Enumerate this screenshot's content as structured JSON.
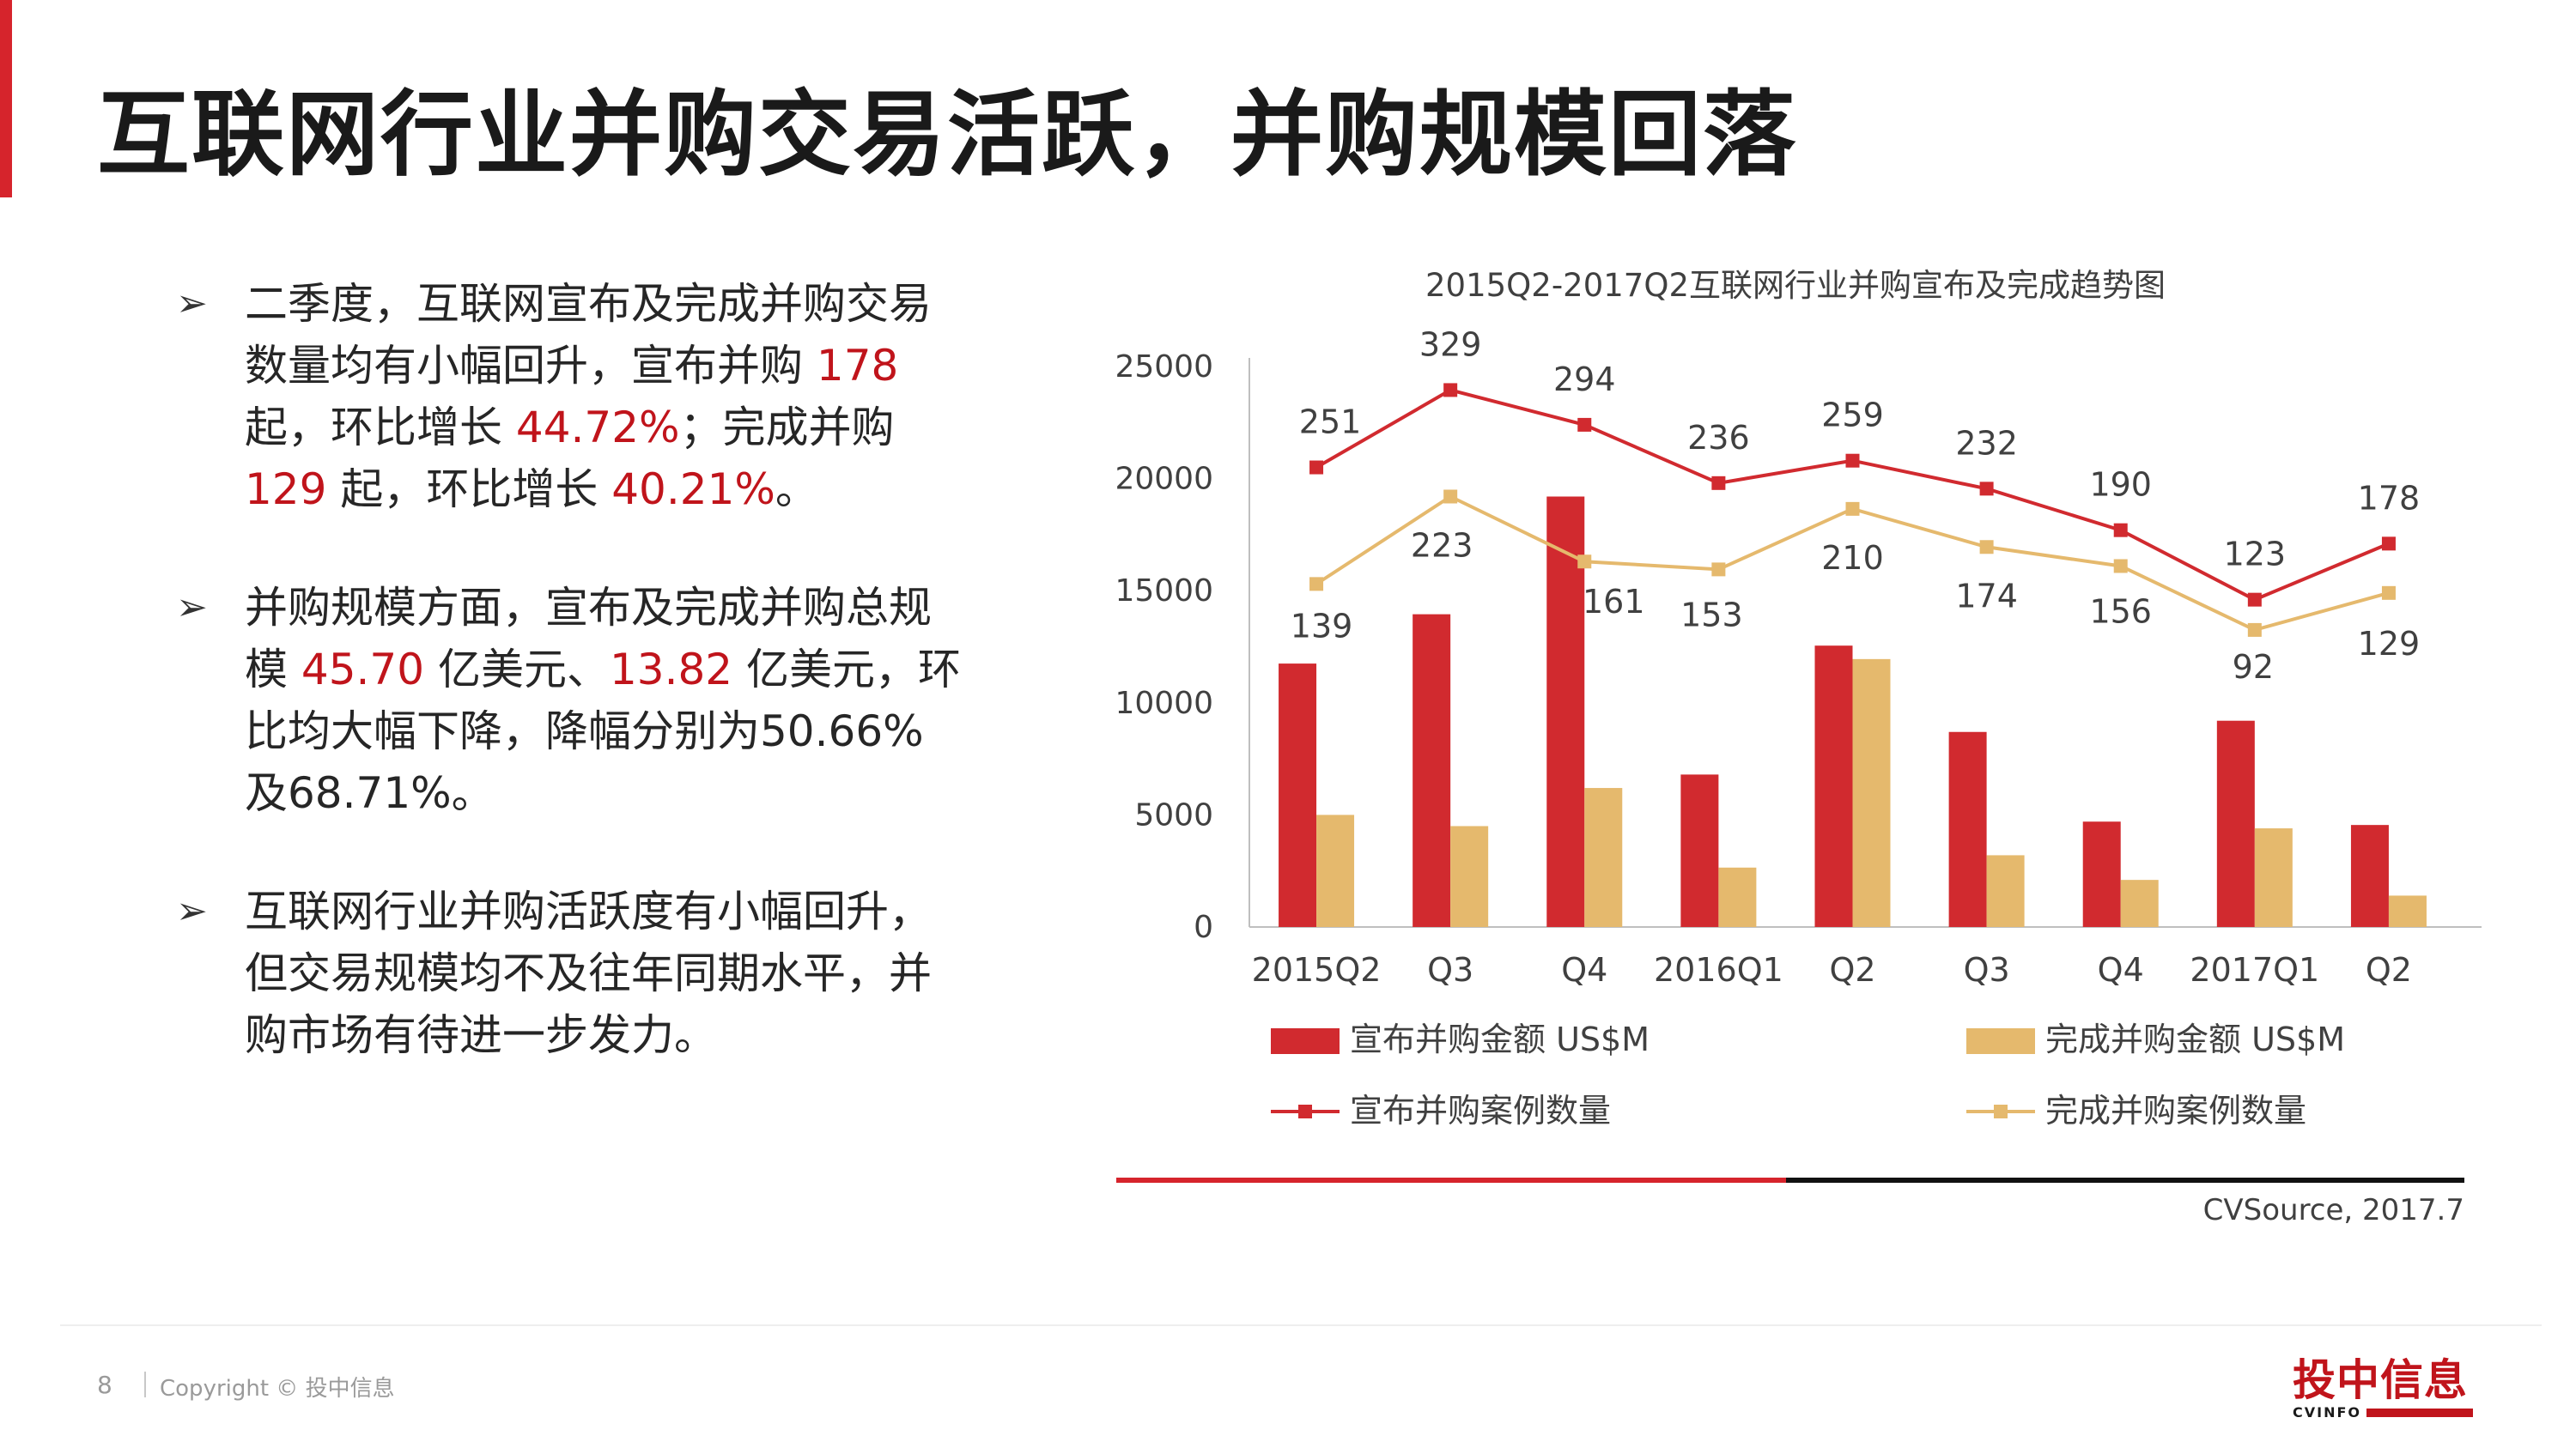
{
  "page": {
    "title": "互联网行业并购交易活跃，并购规模回落"
  },
  "bullets": [
    {
      "arrow": "➢",
      "parts": [
        {
          "text": "二季度，互联网宣布及完成并购交易数量均有小幅回升，宣布并购 ",
          "red": false
        },
        {
          "text": "178",
          "red": true
        },
        {
          "text": " 起，环比增长 ",
          "red": false
        },
        {
          "text": "44.72%",
          "red": true
        },
        {
          "text": "；完成并购 ",
          "red": false
        },
        {
          "text": "129",
          "red": true
        },
        {
          "text": " 起，环比增长 ",
          "red": false
        },
        {
          "text": "40.21%",
          "red": true
        },
        {
          "text": "。",
          "red": false
        }
      ]
    },
    {
      "arrow": "➢",
      "parts": [
        {
          "text": "并购规模方面，宣布及完成并购总规模 ",
          "red": false
        },
        {
          "text": "45.70",
          "red": true
        },
        {
          "text": " 亿美元、",
          "red": false
        },
        {
          "text": "13.82",
          "red": true
        },
        {
          "text": " 亿美元，环比均大幅下降，降幅分别为50.66%及68.71%。",
          "red": false
        }
      ]
    },
    {
      "arrow": "➢",
      "parts": [
        {
          "text": "互联网行业并购活跃度有小幅回升，但交易规模均不及往年同期水平，并购市场有待进一步发力。",
          "red": false
        }
      ]
    }
  ],
  "chart_data": {
    "type": "bar",
    "title": "2015Q2-2017Q2互联网行业并购宣布及完成趋势图",
    "categories": [
      "2015Q2",
      "Q3",
      "Q4",
      "2016Q1",
      "Q2",
      "Q3",
      "Q4",
      "2017Q1",
      "Q2"
    ],
    "ylim": [
      0,
      25000
    ],
    "yticks": [
      0,
      5000,
      10000,
      15000,
      20000,
      25000
    ],
    "grid": false,
    "legend_position": "bottom",
    "bar_series": [
      {
        "name": "宣布并购金额 US$M",
        "color": "#d12a2f",
        "values": [
          11750,
          13950,
          19200,
          6800,
          12550,
          8700,
          4700,
          9200,
          4550
        ]
      },
      {
        "name": "完成并购金额 US$M",
        "color": "#e5b96d",
        "values": [
          5000,
          4500,
          6200,
          2650,
          11950,
          3200,
          2100,
          4400,
          1400
        ]
      }
    ],
    "line_series": [
      {
        "name": "宣布并购案例数量",
        "color": "#d12a2f",
        "labels": [
          251,
          329,
          294,
          236,
          259,
          232,
          190,
          123,
          178
        ],
        "plot_values": [
          20500,
          23950,
          22400,
          19800,
          20800,
          19550,
          17700,
          14600,
          17100
        ]
      },
      {
        "name": "完成并购案例数量",
        "color": "#e5b96d",
        "labels": [
          139,
          223,
          161,
          153,
          210,
          174,
          156,
          92,
          129
        ],
        "plot_values": [
          15300,
          19200,
          16300,
          15950,
          18650,
          16950,
          16100,
          13250,
          14900
        ]
      }
    ],
    "source": "CVSource, 2017.7"
  },
  "footer": {
    "page_number": "8",
    "copyright": "Copyright © 投中信息"
  },
  "logo": {
    "main": "投中信息",
    "sub": "CVINFO"
  }
}
